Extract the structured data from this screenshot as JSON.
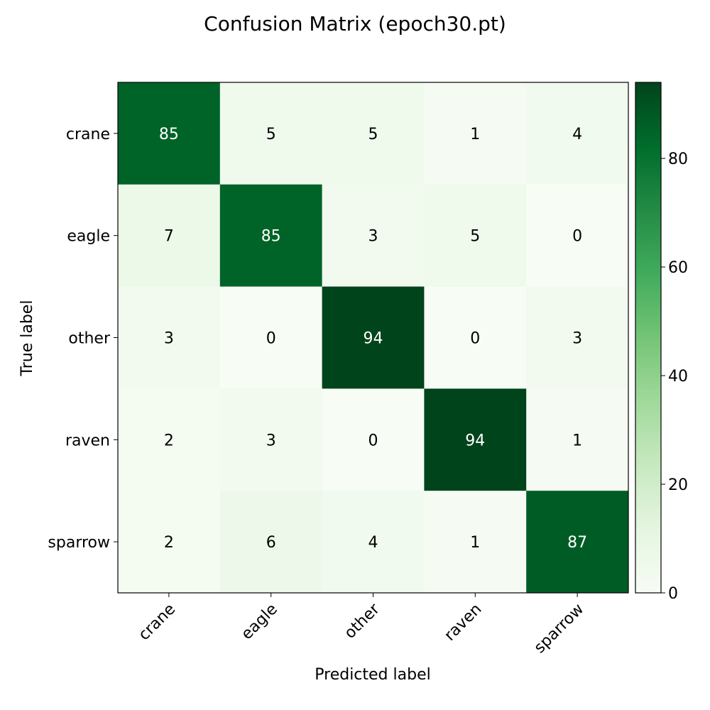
{
  "chart_data": {
    "type": "heatmap",
    "title": "Confusion Matrix (epoch30.pt)",
    "xlabel": "Predicted label",
    "ylabel": "True label",
    "x_categories": [
      "crane",
      "eagle",
      "other",
      "raven",
      "sparrow"
    ],
    "y_categories": [
      "crane",
      "eagle",
      "other",
      "raven",
      "sparrow"
    ],
    "values": [
      [
        85,
        5,
        5,
        1,
        4
      ],
      [
        7,
        85,
        3,
        5,
        0
      ],
      [
        3,
        0,
        94,
        0,
        3
      ],
      [
        2,
        3,
        0,
        94,
        1
      ],
      [
        2,
        6,
        4,
        1,
        87
      ]
    ],
    "colorbar": {
      "range": [
        0,
        94
      ],
      "ticks": [
        0,
        20,
        40,
        60,
        80
      ]
    },
    "colormap": "Greens",
    "text_color_dark": "#000000",
    "text_color_light": "#ffffff"
  }
}
